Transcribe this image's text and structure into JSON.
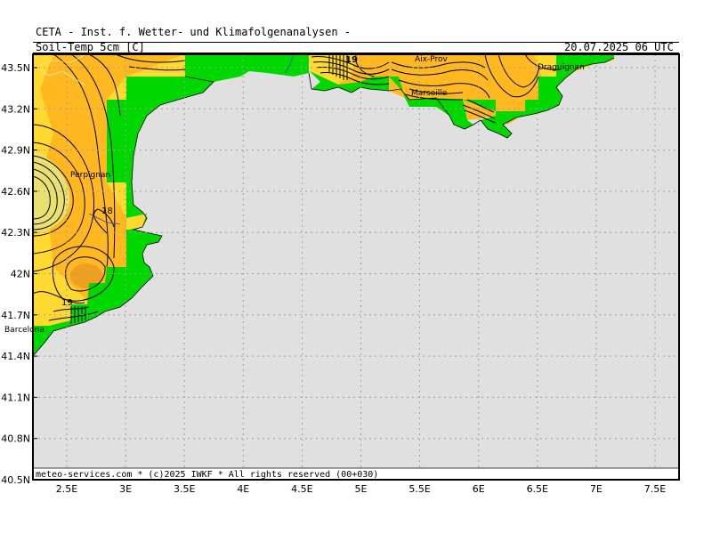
{
  "header": {
    "institute": "CETA - Inst. f. Wetter- und Klimafolgenanalysen -",
    "parameter": "Soil-Temp 5cm [C]",
    "valid_time": "20.07.2025 06 UTC"
  },
  "footer": {
    "credit": "meteo-services.com * (c)2025 IWKF * All rights reserved (00+030)"
  },
  "axes": {
    "lat_labels": [
      "43.5N",
      "43.2N",
      "42.9N",
      "42.6N",
      "42.3N",
      "42N",
      "41.7N",
      "41.4N",
      "41.1N",
      "40.8N",
      "40.5N"
    ],
    "lon_labels": [
      "2.5E",
      "3E",
      "3.5E",
      "4E",
      "4.5E",
      "5E",
      "5.5E",
      "6E",
      "6.5E",
      "7E",
      "7.5E"
    ]
  },
  "cities": [
    "Aix-Prov",
    "Draguignan",
    "Marseille",
    "Perpignan",
    "Barcelona"
  ],
  "contour_labels": [
    "18",
    "19",
    "19"
  ],
  "colors": {
    "sea": "#e0e0e0",
    "land_mask": "#00d800",
    "warm_light": "#ffd830",
    "warm_mid": "#ffb820",
    "warm_dark": "#f0a020",
    "cool": "#e8e070",
    "grid": "#a0a0a0"
  }
}
